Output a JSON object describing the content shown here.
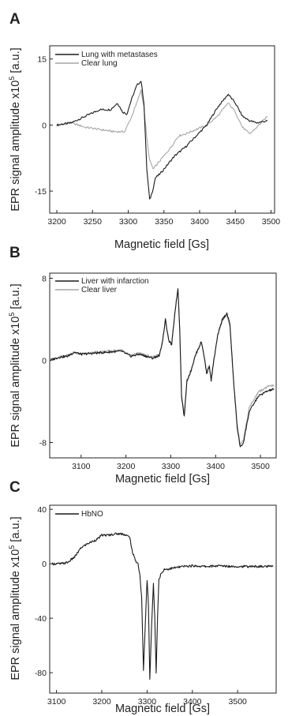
{
  "chart_data": [
    {
      "panel": "A",
      "type": "line",
      "xlabel": "Magnetic field [Gs]",
      "ylabel": "EPR signal amplitude x10",
      "ylabel_sup": "5",
      "ylabel_unit": " [a.u.]",
      "xlim": [
        3190,
        3505
      ],
      "ylim": [
        -20,
        18
      ],
      "xticks": [
        3200,
        3250,
        3300,
        3350,
        3400,
        3450,
        3500
      ],
      "yticks": [
        15,
        0,
        -15
      ],
      "grid": false,
      "legend_position": "top-left",
      "series": [
        {
          "name": "Lung with metastases",
          "color": "#1a1a1a",
          "x": [
            3200,
            3220,
            3240,
            3260,
            3275,
            3285,
            3292,
            3298,
            3305,
            3312,
            3318,
            3322,
            3326,
            3330,
            3334,
            3338,
            3345,
            3355,
            3365,
            3380,
            3395,
            3410,
            3425,
            3440,
            3450,
            3460,
            3470,
            3480,
            3495
          ],
          "values": [
            0,
            0.5,
            2,
            3.5,
            3.5,
            5,
            3,
            2.5,
            6,
            9,
            10,
            5,
            -10,
            -17,
            -15,
            -12,
            -11,
            -9,
            -7,
            -5,
            -2.5,
            0,
            4,
            7,
            5,
            2,
            1,
            0.5,
            1
          ]
        },
        {
          "name": "Clear lung",
          "color": "#a6a6a6",
          "x": [
            3200,
            3220,
            3240,
            3260,
            3280,
            3295,
            3305,
            3312,
            3318,
            3322,
            3326,
            3330,
            3335,
            3340,
            3350,
            3360,
            3370,
            3380,
            3395,
            3410,
            3425,
            3440,
            3450,
            3460,
            3470,
            3480,
            3495
          ],
          "values": [
            0,
            0.5,
            -0.5,
            -1,
            -1.5,
            -1.5,
            2,
            5,
            8,
            4,
            -3,
            -8,
            -10,
            -9,
            -7,
            -5,
            -2.5,
            -2,
            -1,
            0,
            2,
            5,
            3,
            -0.5,
            -2,
            -0.5,
            2
          ]
        }
      ]
    },
    {
      "panel": "B",
      "type": "line",
      "xlabel": "Magnetic field [Gs]",
      "ylabel": "EPR signal amplitude x10",
      "ylabel_sup": "5",
      "ylabel_unit": " [a.u.]",
      "xlim": [
        3030,
        3535
      ],
      "ylim": [
        -9.5,
        8.5
      ],
      "xticks": [
        3100,
        3200,
        3300,
        3400,
        3500
      ],
      "yticks": [
        8,
        0,
        -8
      ],
      "grid": false,
      "legend_position": "top-left",
      "series": [
        {
          "name": "Liver with infarction",
          "color": "#1a1a1a",
          "x": [
            3030,
            3050,
            3070,
            3085,
            3100,
            3130,
            3160,
            3190,
            3210,
            3230,
            3260,
            3275,
            3282,
            3288,
            3295,
            3302,
            3310,
            3316,
            3320,
            3324,
            3330,
            3336,
            3345,
            3355,
            3368,
            3373,
            3380,
            3386,
            3390,
            3396,
            3405,
            3415,
            3425,
            3432,
            3440,
            3448,
            3455,
            3462,
            3475,
            3495,
            3515,
            3530
          ],
          "values": [
            0,
            0.3,
            0.4,
            0.8,
            0.6,
            0.7,
            0.8,
            0.9,
            0.4,
            0.6,
            0.2,
            0.5,
            2,
            4,
            2,
            1.5,
            5,
            7,
            3,
            -3.5,
            -5.5,
            -2,
            -1,
            0.5,
            1.8,
            0.8,
            -1.3,
            -0.5,
            -2,
            0,
            2.5,
            4,
            4.6,
            3.5,
            -2,
            -6.5,
            -8.5,
            -8,
            -5,
            -3.5,
            -3,
            -2.8
          ]
        },
        {
          "name": "Clear liver",
          "color": "#a6a6a6",
          "x": [
            3030,
            3050,
            3070,
            3085,
            3100,
            3130,
            3160,
            3190,
            3210,
            3230,
            3260,
            3275,
            3282,
            3288,
            3295,
            3302,
            3310,
            3316,
            3320,
            3324,
            3330,
            3336,
            3345,
            3355,
            3368,
            3373,
            3380,
            3386,
            3390,
            3396,
            3405,
            3415,
            3425,
            3432,
            3440,
            3448,
            3455,
            3462,
            3475,
            3495,
            3515,
            3530
          ],
          "values": [
            0,
            0.3,
            0.5,
            0.8,
            0.6,
            0.8,
            0.9,
            1.0,
            0.5,
            0.7,
            0.3,
            0.6,
            2,
            4,
            2,
            1.5,
            5,
            6.8,
            3,
            -3.3,
            -5.3,
            -2,
            -1,
            0.5,
            1.8,
            0.8,
            -1.2,
            -0.5,
            -1.8,
            0,
            2.5,
            3.9,
            4.4,
            3.3,
            -2,
            -6.2,
            -8.2,
            -7.7,
            -4.6,
            -3.1,
            -2.6,
            -2.4
          ]
        }
      ]
    },
    {
      "panel": "C",
      "type": "line",
      "xlabel": "Magnetic field [Gs]",
      "ylabel": "EPR signal amplitude x10",
      "ylabel_sup": "5",
      "ylabel_unit": " [a.u.]",
      "xlim": [
        3085,
        3585
      ],
      "ylim": [
        -95,
        43
      ],
      "xticks": [
        3100,
        3200,
        3300,
        3400,
        3500
      ],
      "yticks": [
        40,
        0,
        -40,
        -80
      ],
      "grid": false,
      "legend_position": "top-left",
      "series": [
        {
          "name": "HbNO",
          "color": "#1a1a1a",
          "x": [
            3090,
            3110,
            3125,
            3140,
            3155,
            3170,
            3190,
            3200,
            3215,
            3230,
            3245,
            3255,
            3262,
            3268,
            3275,
            3280,
            3284,
            3288,
            3292,
            3296,
            3300,
            3303,
            3306,
            3310,
            3314,
            3317,
            3320,
            3323,
            3326,
            3330,
            3334,
            3338,
            3345,
            3360,
            3380,
            3400,
            3430,
            3460,
            3500,
            3540,
            3578
          ],
          "values": [
            0,
            0,
            1,
            5,
            12,
            15,
            18,
            21,
            21,
            22,
            22,
            21,
            19,
            8,
            2,
            0,
            -8,
            -25,
            -78,
            -45,
            -12,
            -30,
            -85,
            -45,
            -15,
            -40,
            -80,
            -40,
            -12,
            -8,
            -6,
            -4,
            -4,
            -3,
            -2,
            -1.5,
            -2,
            -1.5,
            -2,
            -2,
            -2
          ]
        }
      ]
    }
  ]
}
